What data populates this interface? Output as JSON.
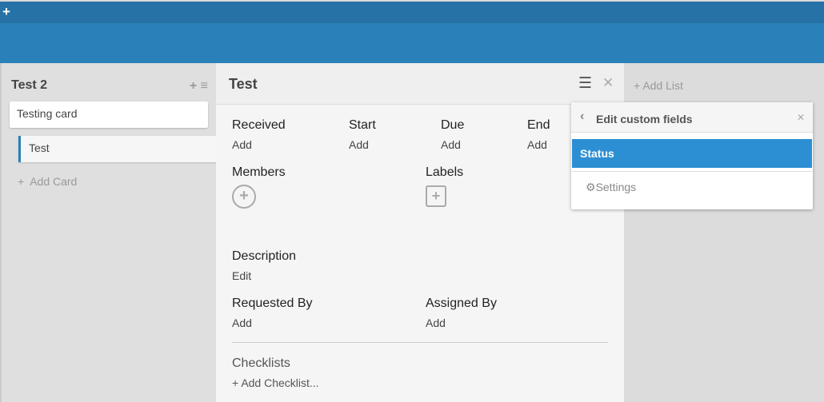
{
  "topbar": {
    "add_icon": "+"
  },
  "list": {
    "title": "Test 2",
    "cards": [
      "Testing card",
      "Test"
    ],
    "add_card": "Add Card"
  },
  "card": {
    "title": "Test",
    "dates": [
      {
        "label": "Received",
        "value": "Add"
      },
      {
        "label": "Start",
        "value": "Add"
      },
      {
        "label": "Due",
        "value": "Add"
      },
      {
        "label": "End",
        "value": "Add"
      }
    ],
    "members": "Members",
    "labels": "Labels",
    "description": {
      "label": "Description",
      "value": "Edit"
    },
    "requested_by": {
      "label": "Requested By",
      "value": "Add"
    },
    "assigned_by": {
      "label": "Assigned By",
      "value": "Add"
    },
    "checklists": {
      "label": "Checklists",
      "add": "Add Checklist..."
    }
  },
  "board": {
    "add_list": "Add List"
  },
  "popup": {
    "title": "Edit custom fields",
    "items": [
      "Status"
    ],
    "settings": "Settings",
    "accent": "#2d8fd3"
  }
}
